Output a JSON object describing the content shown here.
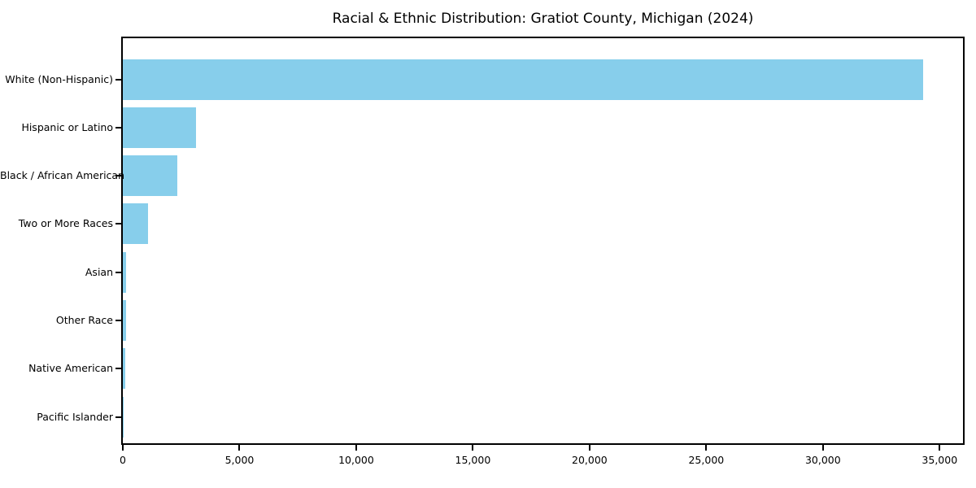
{
  "chart_data": {
    "type": "bar",
    "orientation": "horizontal",
    "title": "Racial & Ethnic Distribution: Gratiot County, Michigan (2024)",
    "categories": [
      "White (Non-Hispanic)",
      "Hispanic or Latino",
      "Black / African American",
      "Two or More Races",
      "Asian",
      "Other Race",
      "Native American",
      "Pacific Islander"
    ],
    "values": [
      34300,
      3140,
      2350,
      1080,
      155,
      140,
      100,
      15
    ],
    "xlabel": "",
    "ylabel": "",
    "xlim": [
      0,
      36000
    ],
    "xticks": [
      0,
      5000,
      10000,
      15000,
      20000,
      25000,
      30000,
      35000
    ],
    "xtick_labels": [
      "0",
      "5,000",
      "10,000",
      "15,000",
      "20,000",
      "25,000",
      "30,000",
      "35,000"
    ],
    "bar_color": "#87CEEB",
    "text_color": "#000000",
    "spine_color": "#000000",
    "grid": false,
    "legend": null,
    "background": "#ffffff"
  }
}
